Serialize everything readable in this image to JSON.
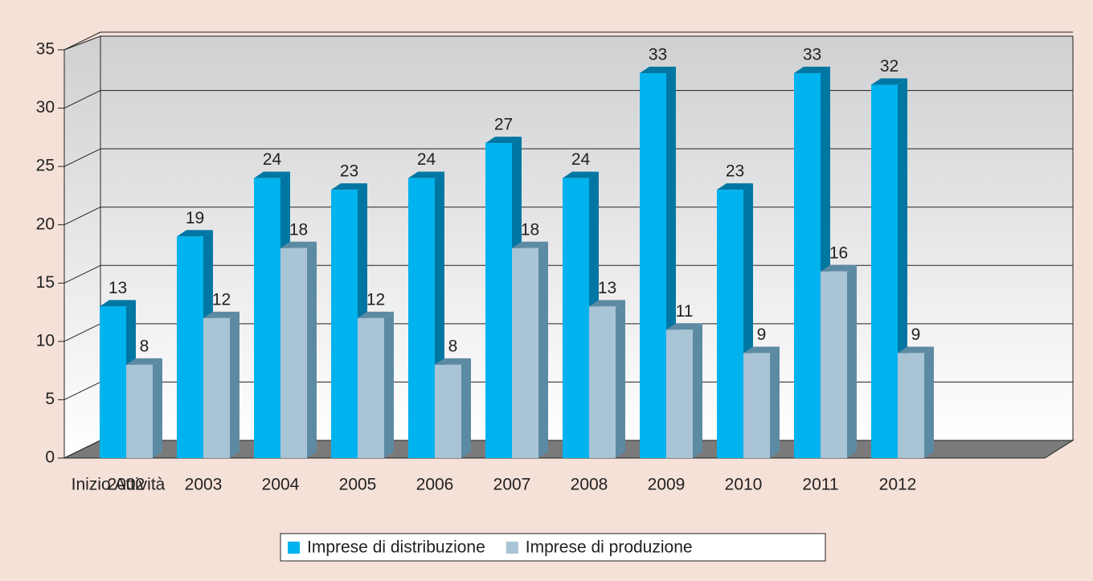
{
  "chart_data": {
    "type": "bar3d",
    "categories": [
      "Inizio Attività",
      "2002",
      "2003",
      "2004",
      "2005",
      "2006",
      "2007",
      "2008",
      "2009",
      "2010",
      "2011",
      "2012"
    ],
    "series": [
      {
        "name": "Imprese di distribuzione",
        "color": "#00b2ee",
        "side_color": "#0077a3",
        "values": [
          null,
          13,
          19,
          24,
          23,
          24,
          27,
          24,
          33,
          23,
          33,
          32
        ]
      },
      {
        "name": "Imprese di produzione",
        "color": "#a9c4d5",
        "side_color": "#5d8aa3",
        "values": [
          null,
          8,
          12,
          18,
          12,
          8,
          18,
          13,
          11,
          9,
          16,
          9
        ]
      }
    ],
    "ylim": [
      0,
      35
    ],
    "yticks": [
      0,
      5,
      10,
      15,
      20,
      25,
      30,
      35
    ],
    "grid": true,
    "legend": "bottom"
  }
}
